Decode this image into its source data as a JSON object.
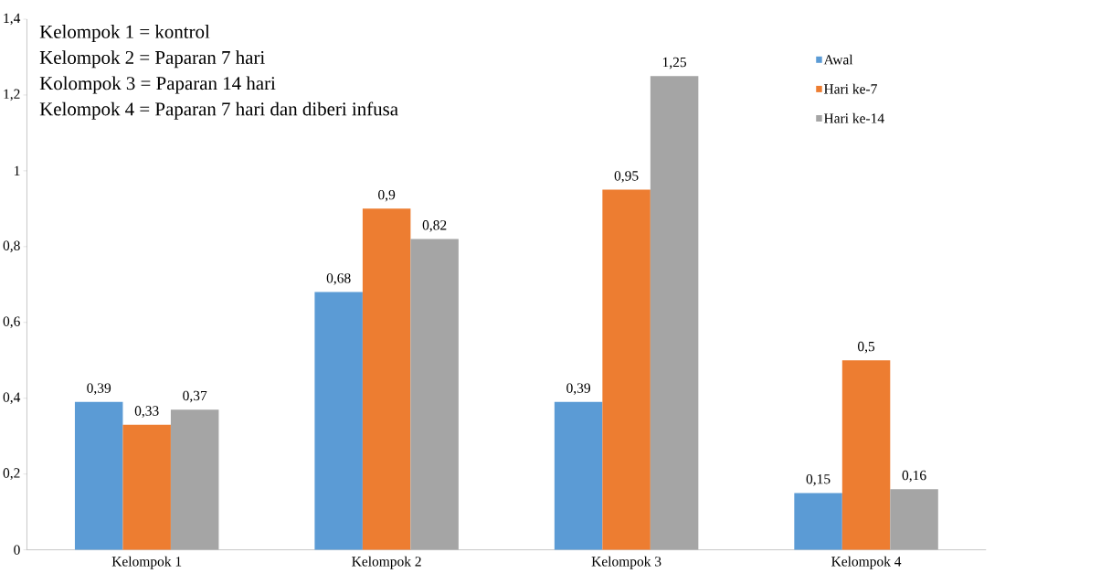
{
  "chart_data": {
    "type": "bar",
    "categories": [
      "Kelompok 1",
      "Kelompok 2",
      "Kelompok 3",
      "Kelompok 4"
    ],
    "series": [
      {
        "name": "Awal",
        "color": "#5b9bd5",
        "values": [
          0.39,
          0.68,
          0.39,
          0.15
        ],
        "value_labels": [
          "0,39",
          "0,68",
          "0,39",
          "0,15"
        ]
      },
      {
        "name": "Hari ke-7",
        "color": "#ed7d31",
        "values": [
          0.33,
          0.9,
          0.95,
          0.5
        ],
        "value_labels": [
          "0,33",
          "0,9",
          "0,95",
          "0,5"
        ]
      },
      {
        "name": "Hari ke-14",
        "color": "#a5a5a5",
        "values": [
          0.37,
          0.82,
          1.25,
          0.16
        ],
        "value_labels": [
          "0,37",
          "0,82",
          "1,25",
          "0,16"
        ]
      }
    ],
    "ylim": [
      0,
      1.4
    ],
    "yticks": [
      0,
      {
        "value": 0.2,
        "label": "0,2"
      },
      {
        "value": 0.4,
        "label": "0,4"
      },
      {
        "value": 0.6,
        "label": "0,6"
      },
      {
        "value": 0.8,
        "label": "0,8"
      },
      1,
      {
        "value": 1.2,
        "label": "1,2"
      },
      {
        "value": 1.4,
        "label": "1,4"
      }
    ],
    "annotations": [
      "Kelompok 1 = kontrol",
      "Kelompok 2 = Paparan 7 hari",
      "Kolompok 3 = Paparan 14 hari",
      "Kelompok 4 = Paparan 7 hari dan diberi infusa"
    ],
    "legend": "top right",
    "grid": false
  }
}
